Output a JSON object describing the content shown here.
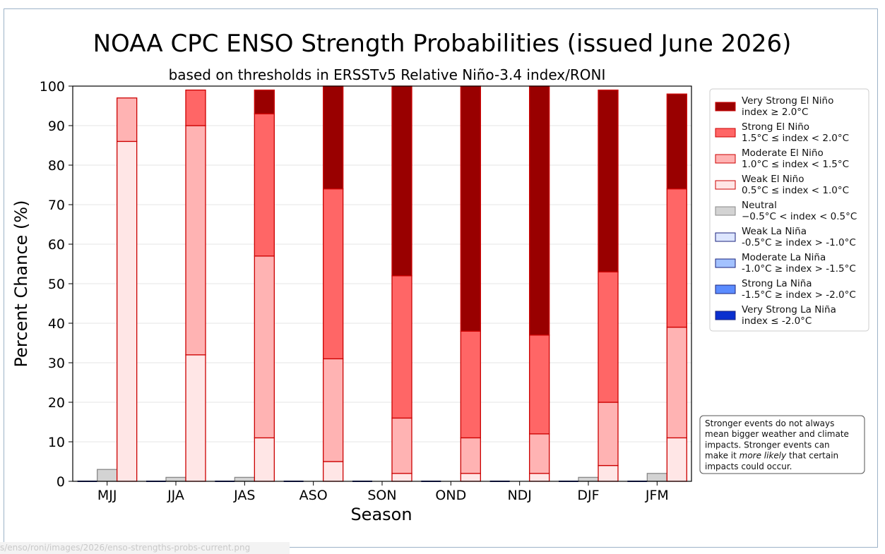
{
  "chart_data": {
    "type": "bar",
    "title": "NOAA CPC ENSO Strength Probabilities (issued June 2026)",
    "subtitle": "based on thresholds in ERSSTv5 Relative Niño-3.4 index/RONI",
    "xlabel": "Season",
    "ylabel": "Percent Chance (%)",
    "ylim": [
      0,
      100
    ],
    "yticks": [
      "0",
      "10",
      "20",
      "30",
      "40",
      "50",
      "60",
      "70",
      "80",
      "90",
      "100"
    ],
    "grid": "horizontal",
    "legend_position": "right",
    "categories": [
      "MJJ",
      "JJA",
      "JAS",
      "ASO",
      "SON",
      "OND",
      "NDJ",
      "DJF",
      "JFM"
    ],
    "stack_groups": [
      {
        "group": "la_nina",
        "series": [
          "Very Strong La Niña",
          "Strong La Niña",
          "Moderate La Niña",
          "Weak La Niña"
        ]
      },
      {
        "group": "neutral",
        "series": [
          "Neutral"
        ]
      },
      {
        "group": "el_nino",
        "series": [
          "Weak El Niño",
          "Moderate El Niño",
          "Strong El Niño",
          "Very Strong El Niño"
        ]
      }
    ],
    "series": [
      {
        "name": "Very Strong El Niño",
        "range": "index ≥ 2.0°C",
        "color": "#990000",
        "group": "el_nino",
        "values": [
          0,
          0,
          6,
          26,
          48,
          62,
          63,
          46,
          24
        ]
      },
      {
        "name": "Strong El Niño",
        "range": "1.5°C ≤ index < 2.0°C",
        "color": "#ff6666",
        "group": "el_nino",
        "values": [
          0,
          9,
          36,
          43,
          36,
          27,
          25,
          33,
          35
        ]
      },
      {
        "name": "Moderate El Niño",
        "range": "1.0°C ≤ index < 1.5°C",
        "color": "#ffb3b3",
        "group": "el_nino",
        "values": [
          11,
          58,
          46,
          26,
          14,
          9,
          10,
          16,
          28
        ]
      },
      {
        "name": "Weak El Niño",
        "range": "0.5°C ≤ index < 1.0°C",
        "color": "#ffe6e6",
        "group": "el_nino",
        "values": [
          86,
          32,
          11,
          5,
          2,
          2,
          2,
          4,
          11
        ]
      },
      {
        "name": "Neutral",
        "range": "−0.5°C < index < 0.5°C",
        "color": "#d3d3d3",
        "group": "neutral",
        "values": [
          3,
          1,
          1,
          0,
          0,
          0,
          0,
          1,
          2
        ]
      },
      {
        "name": "Weak La Niña",
        "range": "-0.5°C ≥ index > -1.0°C",
        "color": "#dde6ff",
        "group": "la_nina",
        "values": [
          0,
          0,
          0,
          0,
          0,
          0,
          0,
          0,
          0
        ]
      },
      {
        "name": "Moderate La Niña",
        "range": "-1.0°C ≥ index > -1.5°C",
        "color": "#a3c2ff",
        "group": "la_nina",
        "values": [
          0,
          0,
          0,
          0,
          0,
          0,
          0,
          0,
          0
        ]
      },
      {
        "name": "Strong La Niña",
        "range": "-1.5°C ≥ index > -2.0°C",
        "color": "#5b8cff",
        "group": "la_nina",
        "values": [
          0,
          0,
          0,
          0,
          0,
          0,
          0,
          0,
          0
        ]
      },
      {
        "name": "Very Strong La Niña",
        "range": "index ≤ -2.0°C",
        "color": "#0a2fcf",
        "group": "la_nina",
        "values": [
          0,
          0,
          0,
          0,
          0,
          0,
          0,
          0,
          0
        ]
      }
    ],
    "colors": {
      "el_nino_edge": "#cc0000",
      "neutral_edge": "#888888",
      "la_nina_edge": "#1a237e"
    },
    "annotation": [
      {
        "text": "Stronger events do not always",
        "italic": ""
      },
      {
        "text": "mean bigger weather and climate",
        "italic": ""
      },
      {
        "text": "impacts. Stronger events can",
        "italic": ""
      },
      {
        "text": "make it ",
        "italic": "more likely",
        "after": " that certain"
      },
      {
        "text": "impacts could occur.",
        "italic": ""
      }
    ]
  },
  "footer": {
    "url": "s/enso/roni/images/2026/enso-strengths-probs-current.png"
  }
}
